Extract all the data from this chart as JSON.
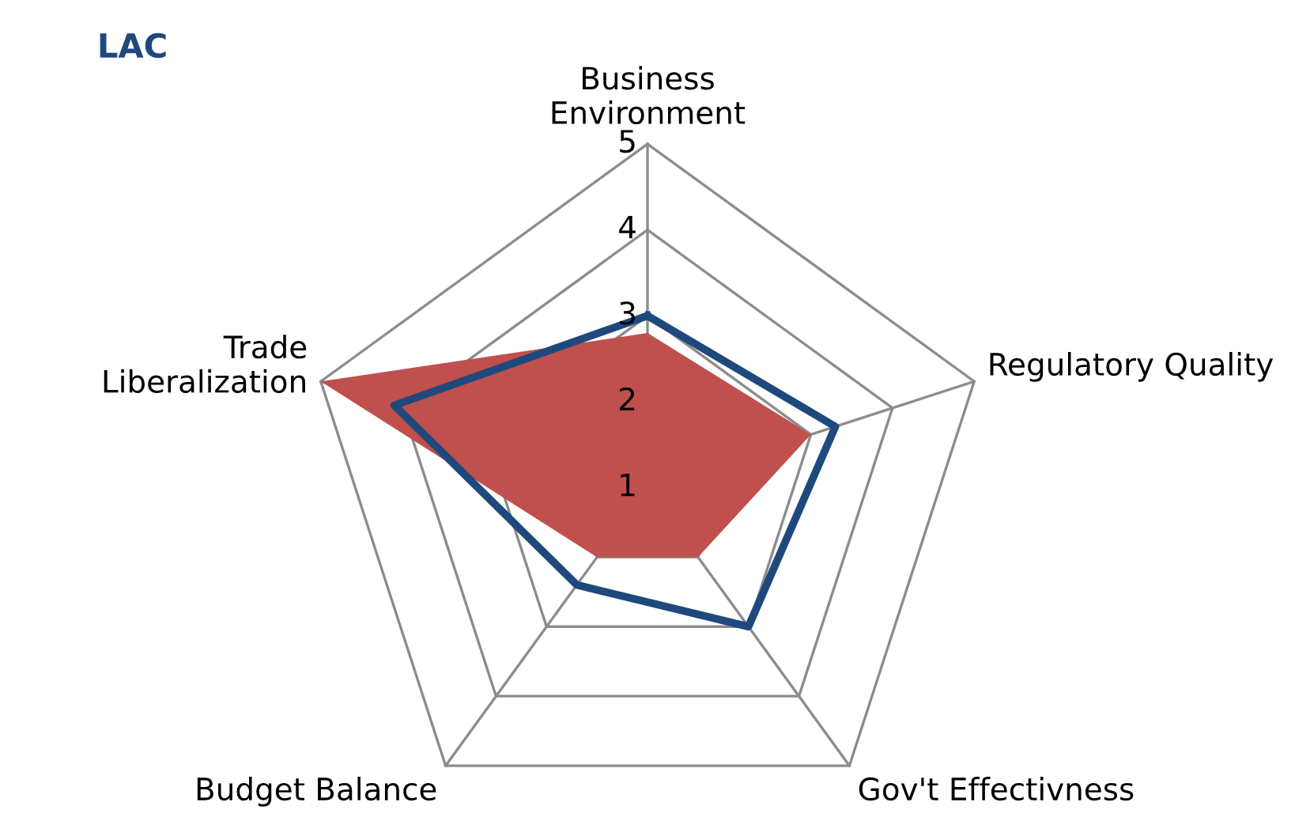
{
  "chart_data": {
    "type": "radar",
    "title": "LAC",
    "categories": [
      "Business Environment",
      "Regulatory Quality",
      "Gov't Effectivness",
      "Budget Balance",
      "Trade Liberalization"
    ],
    "series": [
      {
        "color": "#c0504d",
        "values": [
          2.8,
          3.0,
          2.0,
          2.0,
          5.0
        ]
      },
      {
        "color": "#1f497d",
        "values": [
          3.0,
          3.3,
          3.0,
          2.4,
          4.1
        ]
      }
    ],
    "ylim": [
      1,
      5
    ],
    "yticks": [
      1,
      2,
      3,
      4,
      5
    ],
    "grid": true
  }
}
